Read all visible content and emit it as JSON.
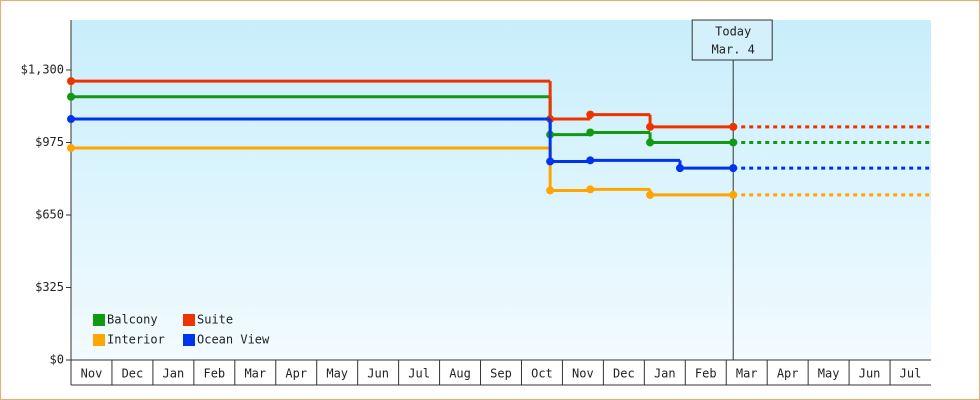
{
  "chart_data": {
    "type": "step",
    "categories": [
      "Nov",
      "Dec",
      "Jan",
      "Feb",
      "Mar",
      "Apr",
      "May",
      "Jun",
      "Jul",
      "Aug",
      "Sep",
      "Oct",
      "Nov",
      "Dec",
      "Jan",
      "Feb",
      "Mar",
      "Apr",
      "May",
      "Jun",
      "Jul"
    ],
    "xlim": [
      0,
      21
    ],
    "ylim": [
      0,
      1524
    ],
    "yticks": [
      {
        "value": 0,
        "label": "$0"
      },
      {
        "value": 325,
        "label": "$325"
      },
      {
        "value": 650,
        "label": "$650"
      },
      {
        "value": 975,
        "label": "$975"
      },
      {
        "value": 1300,
        "label": "$1,300"
      }
    ],
    "series": [
      {
        "name": "Balcony",
        "color": "#119911",
        "x": [
          0,
          11.7,
          12.68,
          14.14,
          16.17
        ],
        "values": [
          1180,
          1010,
          1020,
          975,
          975
        ]
      },
      {
        "name": "Suite",
        "color": "#ee3300",
        "x": [
          0,
          11.7,
          12.68,
          14.14,
          16.17
        ],
        "values": [
          1250,
          1080,
          1100,
          1045,
          1045
        ]
      },
      {
        "name": "Interior",
        "color": "#ffa500",
        "x": [
          0,
          11.7,
          12.68,
          14.14,
          16.17
        ],
        "values": [
          950,
          760,
          765,
          740,
          740
        ]
      },
      {
        "name": "Ocean View",
        "color": "#0033ee",
        "x": [
          0,
          11.7,
          12.68,
          14.87,
          16.17
        ],
        "values": [
          1080,
          890,
          895,
          860,
          860
        ]
      }
    ],
    "today": {
      "x": 16.17,
      "label": [
        "Today",
        "Mar. 4"
      ]
    }
  }
}
